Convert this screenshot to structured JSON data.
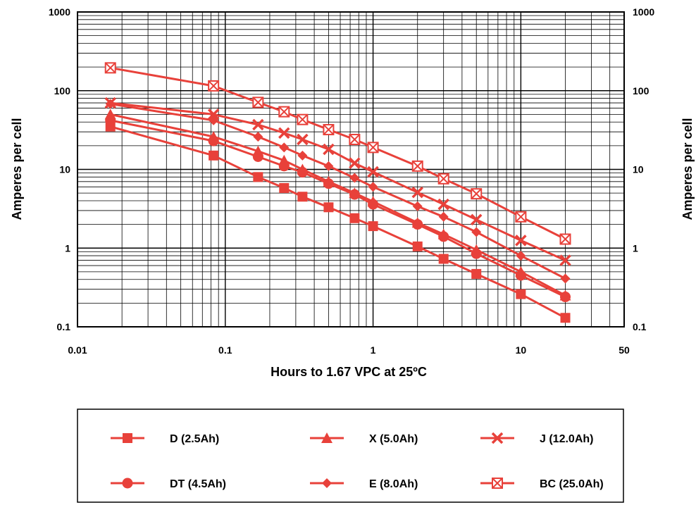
{
  "chart_data": {
    "type": "line",
    "xlabel": "Hours to 1.67 VPC at 25ºC",
    "ylabel": "Amperes per cell",
    "ylabel_right": "Amperes per cell",
    "x_scale": "log",
    "y_scale": "log",
    "xlim": [
      0.01,
      50
    ],
    "ylim": [
      0.1,
      1000
    ],
    "x_tick_labels": [
      "0.01",
      "0.1",
      "1",
      "10",
      "50"
    ],
    "x_tick_values": [
      0.01,
      0.1,
      1,
      10,
      50
    ],
    "y_tick_labels": [
      "0.1",
      "1",
      "10",
      "100",
      "1000"
    ],
    "y_tick_values": [
      0.1,
      1,
      10,
      100,
      1000
    ],
    "grid": true,
    "legend_position": "bottom",
    "line_color": "#e8413a",
    "series": [
      {
        "name": "D (2.5Ah)",
        "marker": "square",
        "x": [
          0.0167,
          0.0833,
          0.1667,
          0.25,
          0.333,
          0.5,
          0.75,
          1,
          2,
          3,
          5,
          10,
          20
        ],
        "y": [
          35,
          15,
          8,
          5.8,
          4.5,
          3.3,
          2.4,
          1.9,
          1.05,
          0.73,
          0.47,
          0.26,
          0.13
        ]
      },
      {
        "name": "X (5.0Ah)",
        "marker": "triangle",
        "x": [
          0.0167,
          0.0833,
          0.1667,
          0.25,
          0.333,
          0.5,
          0.75,
          1,
          2,
          3,
          5,
          10,
          20
        ],
        "y": [
          50,
          26,
          17,
          13,
          10,
          7,
          5,
          3.9,
          2.1,
          1.5,
          0.95,
          0.5,
          0.25
        ]
      },
      {
        "name": "J (12.0Ah)",
        "marker": "x",
        "x": [
          0.0167,
          0.0833,
          0.1667,
          0.25,
          0.333,
          0.5,
          0.75,
          1,
          2,
          3,
          5,
          10,
          20
        ],
        "y": [
          70,
          50,
          37,
          29,
          24,
          18,
          12,
          9.3,
          5.1,
          3.6,
          2.3,
          1.25,
          0.7
        ]
      },
      {
        "name": "DT (4.5Ah)",
        "marker": "circle",
        "x": [
          0.0167,
          0.0833,
          0.1667,
          0.25,
          0.333,
          0.5,
          0.75,
          1,
          2,
          3,
          5,
          10,
          20
        ],
        "y": [
          42,
          23,
          14.5,
          11,
          9.2,
          6.6,
          4.8,
          3.6,
          2,
          1.4,
          0.85,
          0.45,
          0.24
        ]
      },
      {
        "name": "E (8.0Ah)",
        "marker": "diamond",
        "x": [
          0.0167,
          0.0833,
          0.1667,
          0.25,
          0.333,
          0.5,
          0.75,
          1,
          2,
          3,
          5,
          10,
          20
        ],
        "y": [
          68,
          42,
          26,
          19,
          15,
          11,
          7.8,
          6,
          3.4,
          2.5,
          1.6,
          0.8,
          0.41
        ]
      },
      {
        "name": "BC (25.0Ah)",
        "marker": "boxx",
        "x": [
          0.0167,
          0.0833,
          0.1667,
          0.25,
          0.333,
          0.5,
          0.75,
          1,
          2,
          3,
          5,
          10,
          20
        ],
        "y": [
          195,
          115,
          71,
          54,
          43,
          32,
          24,
          19,
          11,
          7.6,
          4.9,
          2.5,
          1.3
        ]
      }
    ]
  }
}
